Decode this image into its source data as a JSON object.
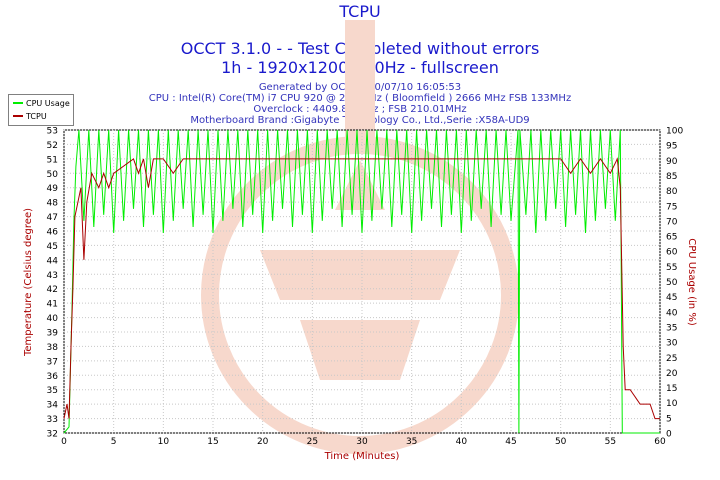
{
  "chart_data": {
    "type": "line",
    "title": "TCPU",
    "subtitle_lines": [
      "OCCT 3.1.0 -  - Test Completed without errors",
      "1h - 1920x1200@60Hz - fullscreen"
    ],
    "info_lines": [
      "Generated by OCCT : 10/07/10 16:05:53",
      "CPU : Intel(R) Core(TM) i7 CPU 920 @ 2.67GHz ( Bloomfield ) 2666 MHz FSB 133MHz",
      "Overclock : 4409.81 MHz ; FSB 210.01MHz",
      "Motherboard Brand :Gigabyte Technology Co., Ltd.,Serie :X58A-UD9"
    ],
    "xlabel": "Time (Minutes)",
    "ylabel_left": "Temperature (Celsius degree)",
    "ylabel_right": "CPU Usage (in %)",
    "xlim": [
      0,
      60
    ],
    "ylim_left": [
      32,
      53
    ],
    "ylim_right": [
      0,
      100
    ],
    "x_ticks": [
      0,
      5,
      10,
      15,
      20,
      25,
      30,
      35,
      40,
      45,
      50,
      55,
      60
    ],
    "y_ticks_left": [
      32,
      33,
      34,
      35,
      36,
      37,
      38,
      39,
      40,
      41,
      42,
      43,
      44,
      45,
      46,
      47,
      48,
      49,
      50,
      51,
      52,
      53
    ],
    "y_ticks_right": [
      0,
      5,
      10,
      15,
      20,
      25,
      30,
      35,
      40,
      45,
      50,
      55,
      60,
      65,
      70,
      75,
      80,
      85,
      90,
      95,
      100
    ],
    "grid": true,
    "legend_position": "top-left",
    "series": [
      {
        "name": "CPU Usage",
        "axis": "right",
        "color": "#00ee00",
        "points": [
          [
            0,
            0
          ],
          [
            0.5,
            2
          ],
          [
            0.8,
            40
          ],
          [
            1.0,
            70
          ],
          [
            1.2,
            88
          ],
          [
            1.5,
            100
          ],
          [
            2,
            70
          ],
          [
            2.5,
            100
          ],
          [
            3,
            68
          ],
          [
            3.5,
            100
          ],
          [
            4,
            72
          ],
          [
            4.5,
            100
          ],
          [
            5,
            66
          ],
          [
            5.5,
            100
          ],
          [
            6,
            70
          ],
          [
            6.5,
            100
          ],
          [
            7,
            74
          ],
          [
            7.5,
            100
          ],
          [
            8,
            68
          ],
          [
            8.5,
            100
          ],
          [
            9,
            72
          ],
          [
            9.5,
            100
          ],
          [
            10,
            66
          ],
          [
            10.5,
            100
          ],
          [
            11,
            70
          ],
          [
            11.5,
            100
          ],
          [
            12,
            74
          ],
          [
            12.5,
            100
          ],
          [
            13,
            68
          ],
          [
            13.5,
            100
          ],
          [
            14,
            72
          ],
          [
            14.5,
            100
          ],
          [
            15,
            66
          ],
          [
            15.5,
            100
          ],
          [
            16,
            70
          ],
          [
            16.5,
            100
          ],
          [
            17,
            74
          ],
          [
            17.5,
            100
          ],
          [
            18,
            68
          ],
          [
            18.5,
            100
          ],
          [
            19,
            72
          ],
          [
            19.5,
            100
          ],
          [
            20,
            66
          ],
          [
            20.5,
            100
          ],
          [
            21,
            70
          ],
          [
            21.5,
            100
          ],
          [
            22,
            74
          ],
          [
            22.5,
            100
          ],
          [
            23,
            68
          ],
          [
            23.5,
            100
          ],
          [
            24,
            72
          ],
          [
            24.5,
            100
          ],
          [
            25,
            66
          ],
          [
            25.5,
            100
          ],
          [
            26,
            70
          ],
          [
            26.5,
            100
          ],
          [
            27,
            74
          ],
          [
            27.5,
            100
          ],
          [
            28,
            68
          ],
          [
            28.5,
            100
          ],
          [
            29,
            72
          ],
          [
            29.5,
            100
          ],
          [
            30,
            66
          ],
          [
            30.5,
            100
          ],
          [
            31,
            70
          ],
          [
            31.5,
            100
          ],
          [
            32,
            74
          ],
          [
            32.5,
            100
          ],
          [
            33,
            68
          ],
          [
            33.5,
            100
          ],
          [
            34,
            72
          ],
          [
            34.5,
            100
          ],
          [
            35,
            66
          ],
          [
            35.5,
            100
          ],
          [
            36,
            70
          ],
          [
            36.5,
            100
          ],
          [
            37,
            74
          ],
          [
            37.5,
            100
          ],
          [
            38,
            68
          ],
          [
            38.5,
            100
          ],
          [
            39,
            72
          ],
          [
            39.5,
            100
          ],
          [
            40,
            66
          ],
          [
            40.5,
            100
          ],
          [
            41,
            70
          ],
          [
            41.5,
            100
          ],
          [
            42,
            74
          ],
          [
            42.5,
            100
          ],
          [
            43,
            68
          ],
          [
            43.5,
            100
          ],
          [
            44,
            72
          ],
          [
            44.5,
            100
          ],
          [
            45,
            70
          ],
          [
            45.7,
            100
          ],
          [
            45.8,
            0
          ],
          [
            45.9,
            100
          ],
          [
            46.5,
            72
          ],
          [
            47,
            100
          ],
          [
            47.5,
            66
          ],
          [
            48,
            100
          ],
          [
            48.5,
            70
          ],
          [
            49,
            100
          ],
          [
            49.5,
            74
          ],
          [
            50,
            100
          ],
          [
            50.5,
            68
          ],
          [
            51,
            100
          ],
          [
            51.5,
            72
          ],
          [
            52,
            100
          ],
          [
            52.5,
            66
          ],
          [
            53,
            100
          ],
          [
            53.5,
            70
          ],
          [
            54,
            100
          ],
          [
            54.5,
            74
          ],
          [
            55,
            100
          ],
          [
            55.5,
            70
          ],
          [
            56,
            100
          ],
          [
            56.2,
            0
          ],
          [
            60,
            0
          ]
        ]
      },
      {
        "name": "TCPU",
        "axis": "left",
        "color": "#aa0000",
        "points": [
          [
            0,
            33
          ],
          [
            0.3,
            34
          ],
          [
            0.5,
            33
          ],
          [
            0.7,
            38
          ],
          [
            0.9,
            42
          ],
          [
            1.1,
            47
          ],
          [
            1.4,
            48
          ],
          [
            1.7,
            49
          ],
          [
            2,
            44
          ],
          [
            2.3,
            48
          ],
          [
            2.8,
            50
          ],
          [
            3.5,
            49
          ],
          [
            4,
            50
          ],
          [
            4.5,
            49
          ],
          [
            5,
            50
          ],
          [
            6,
            50.5
          ],
          [
            7,
            51
          ],
          [
            7.5,
            50
          ],
          [
            8,
            51
          ],
          [
            8.5,
            49
          ],
          [
            9,
            51
          ],
          [
            10,
            51
          ],
          [
            11,
            50
          ],
          [
            12,
            51
          ],
          [
            13,
            51
          ],
          [
            14,
            51
          ],
          [
            15,
            51
          ],
          [
            16,
            51
          ],
          [
            17,
            51
          ],
          [
            18,
            51
          ],
          [
            19,
            51
          ],
          [
            20,
            51
          ],
          [
            21,
            51
          ],
          [
            22,
            51
          ],
          [
            23,
            51
          ],
          [
            24,
            51
          ],
          [
            25,
            51
          ],
          [
            26,
            51
          ],
          [
            27,
            51
          ],
          [
            28,
            51
          ],
          [
            29,
            51
          ],
          [
            30,
            51
          ],
          [
            31,
            51
          ],
          [
            32,
            51
          ],
          [
            33,
            51
          ],
          [
            34,
            51
          ],
          [
            35,
            51
          ],
          [
            36,
            51
          ],
          [
            37,
            51
          ],
          [
            38,
            51
          ],
          [
            39,
            51
          ],
          [
            40,
            51
          ],
          [
            41,
            51
          ],
          [
            42,
            51
          ],
          [
            43,
            51
          ],
          [
            44,
            51
          ],
          [
            45,
            51
          ],
          [
            46,
            51
          ],
          [
            47,
            51
          ],
          [
            48,
            51
          ],
          [
            49,
            51
          ],
          [
            50,
            51
          ],
          [
            51,
            50
          ],
          [
            52,
            51
          ],
          [
            53,
            50
          ],
          [
            54,
            51
          ],
          [
            55,
            50
          ],
          [
            55.7,
            51
          ],
          [
            56,
            49
          ],
          [
            56.3,
            38
          ],
          [
            56.5,
            35
          ],
          [
            57,
            35
          ],
          [
            58,
            34
          ],
          [
            59,
            34
          ],
          [
            59.5,
            33
          ],
          [
            60,
            33
          ]
        ]
      }
    ]
  }
}
